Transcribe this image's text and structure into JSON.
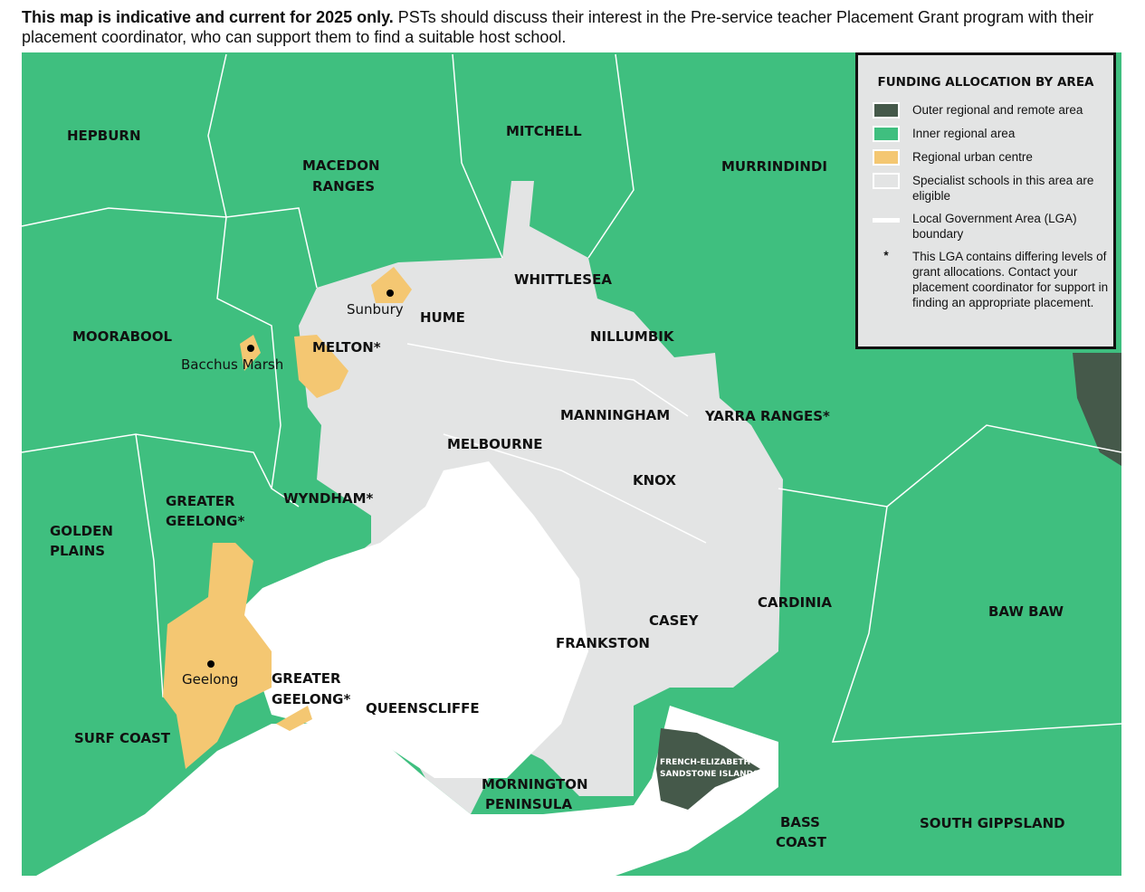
{
  "intro": {
    "bold": "This map is indicative and current for 2025 only.",
    "text": " PSTs should discuss their interest in the Pre-service teacher Placement Grant program with their placement coordinator, who can support them to find a suitable host school."
  },
  "colors": {
    "outer_regional": "#45594a",
    "inner_regional": "#3fbf7f",
    "regional_urban": "#f4c772",
    "specialist": "#e3e4e4",
    "boundary": "#ffffff",
    "water": "#ffffff"
  },
  "lgas": [
    "HEPBURN",
    "MACEDON",
    "RANGES",
    "MITCHELL",
    "MURRINDINDI",
    "WHITTLESEA",
    "HUME",
    "NILLUMBIK",
    "MOORABOOL",
    "MELTON*",
    "MANNINGHAM",
    "YARRA RANGES*",
    "MELBOURNE",
    "KNOX",
    "WYNDHAM*",
    "GREATER",
    "GEELONG*",
    "GOLDEN",
    "PLAINS",
    "CARDINIA",
    "BAW BAW",
    "CASEY",
    "FRANKSTON",
    "GREATER",
    "GEELONG*",
    "QUEENSCLIFFE",
    "SURF COAST",
    "MORNINGTON",
    "PENINSULA",
    "BASS",
    "COAST",
    "SOUTH GIPPSLAND"
  ],
  "towns": [
    "Sunbury",
    "Bacchus Marsh",
    "Geelong"
  ],
  "islands": [
    "FRENCH-ELIZABETH-",
    "SANDSTONE ISLANDS"
  ],
  "legend": {
    "title": "FUNDING ALLOCATION BY AREA",
    "items": [
      "Outer regional and remote area",
      "Inner regional area",
      "Regional urban centre",
      "Specialist schools in this area are eligible",
      "Local Government Area (LGA) boundary",
      "This LGA contains differing levels of grant allocations. Contact your placement coordinator for support in finding an appropriate placement."
    ],
    "asterisk": "*"
  }
}
